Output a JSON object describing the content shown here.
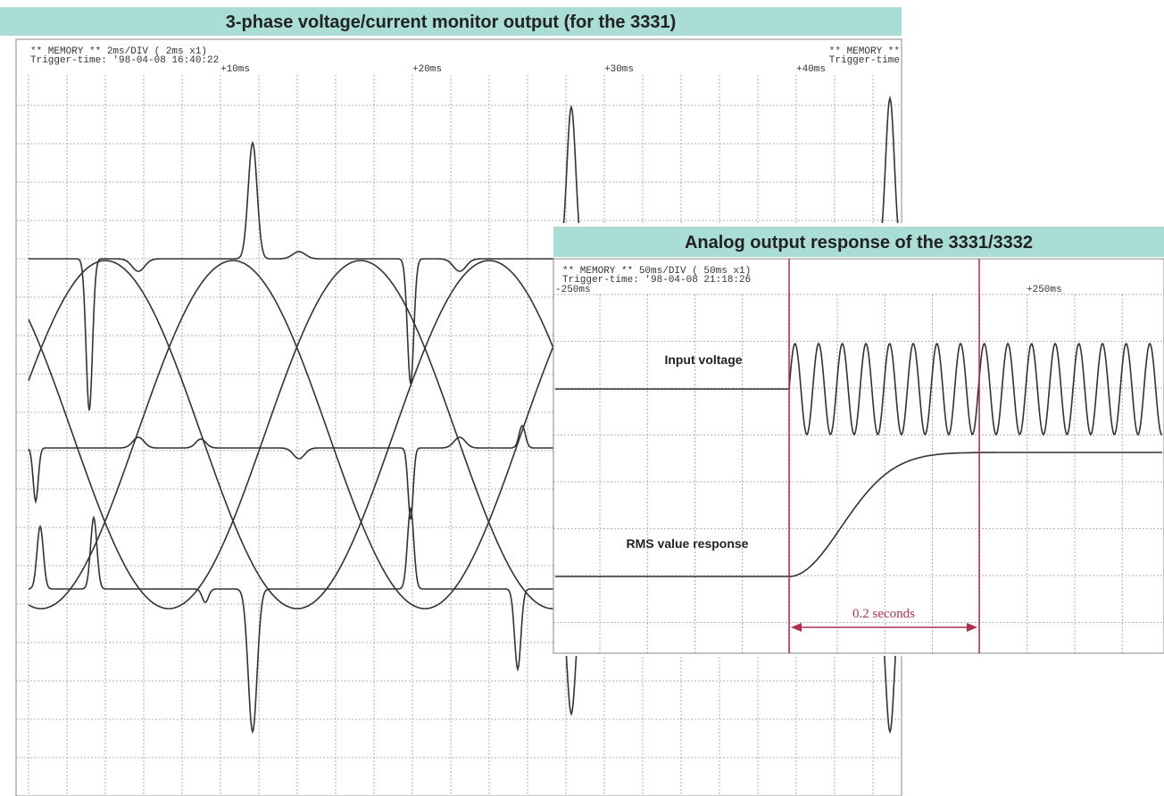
{
  "left": {
    "title": "3-phase voltage/current monitor output (for the 3331)",
    "header_line1": "** MEMORY **   2ms/DIV (  2ms x1)",
    "header_line2": "Trigger-time: '98-04-08 16:40:22",
    "marks": [
      "+10ms",
      "+20ms",
      "+30ms",
      "+40ms"
    ],
    "right_line1": "** MEMORY **",
    "right_line2": "Trigger-time"
  },
  "right": {
    "title": "Analog output response of the 3331/3332",
    "header_line1": "** MEMORY **   50ms/DIV (  50ms x1)",
    "header_line2": "Trigger-time: '98-04-08 21:18:26",
    "start": "-250ms",
    "end": "+250ms",
    "label_input": "Input voltage",
    "label_rms": "RMS value response",
    "interval": "0.2 seconds"
  }
}
